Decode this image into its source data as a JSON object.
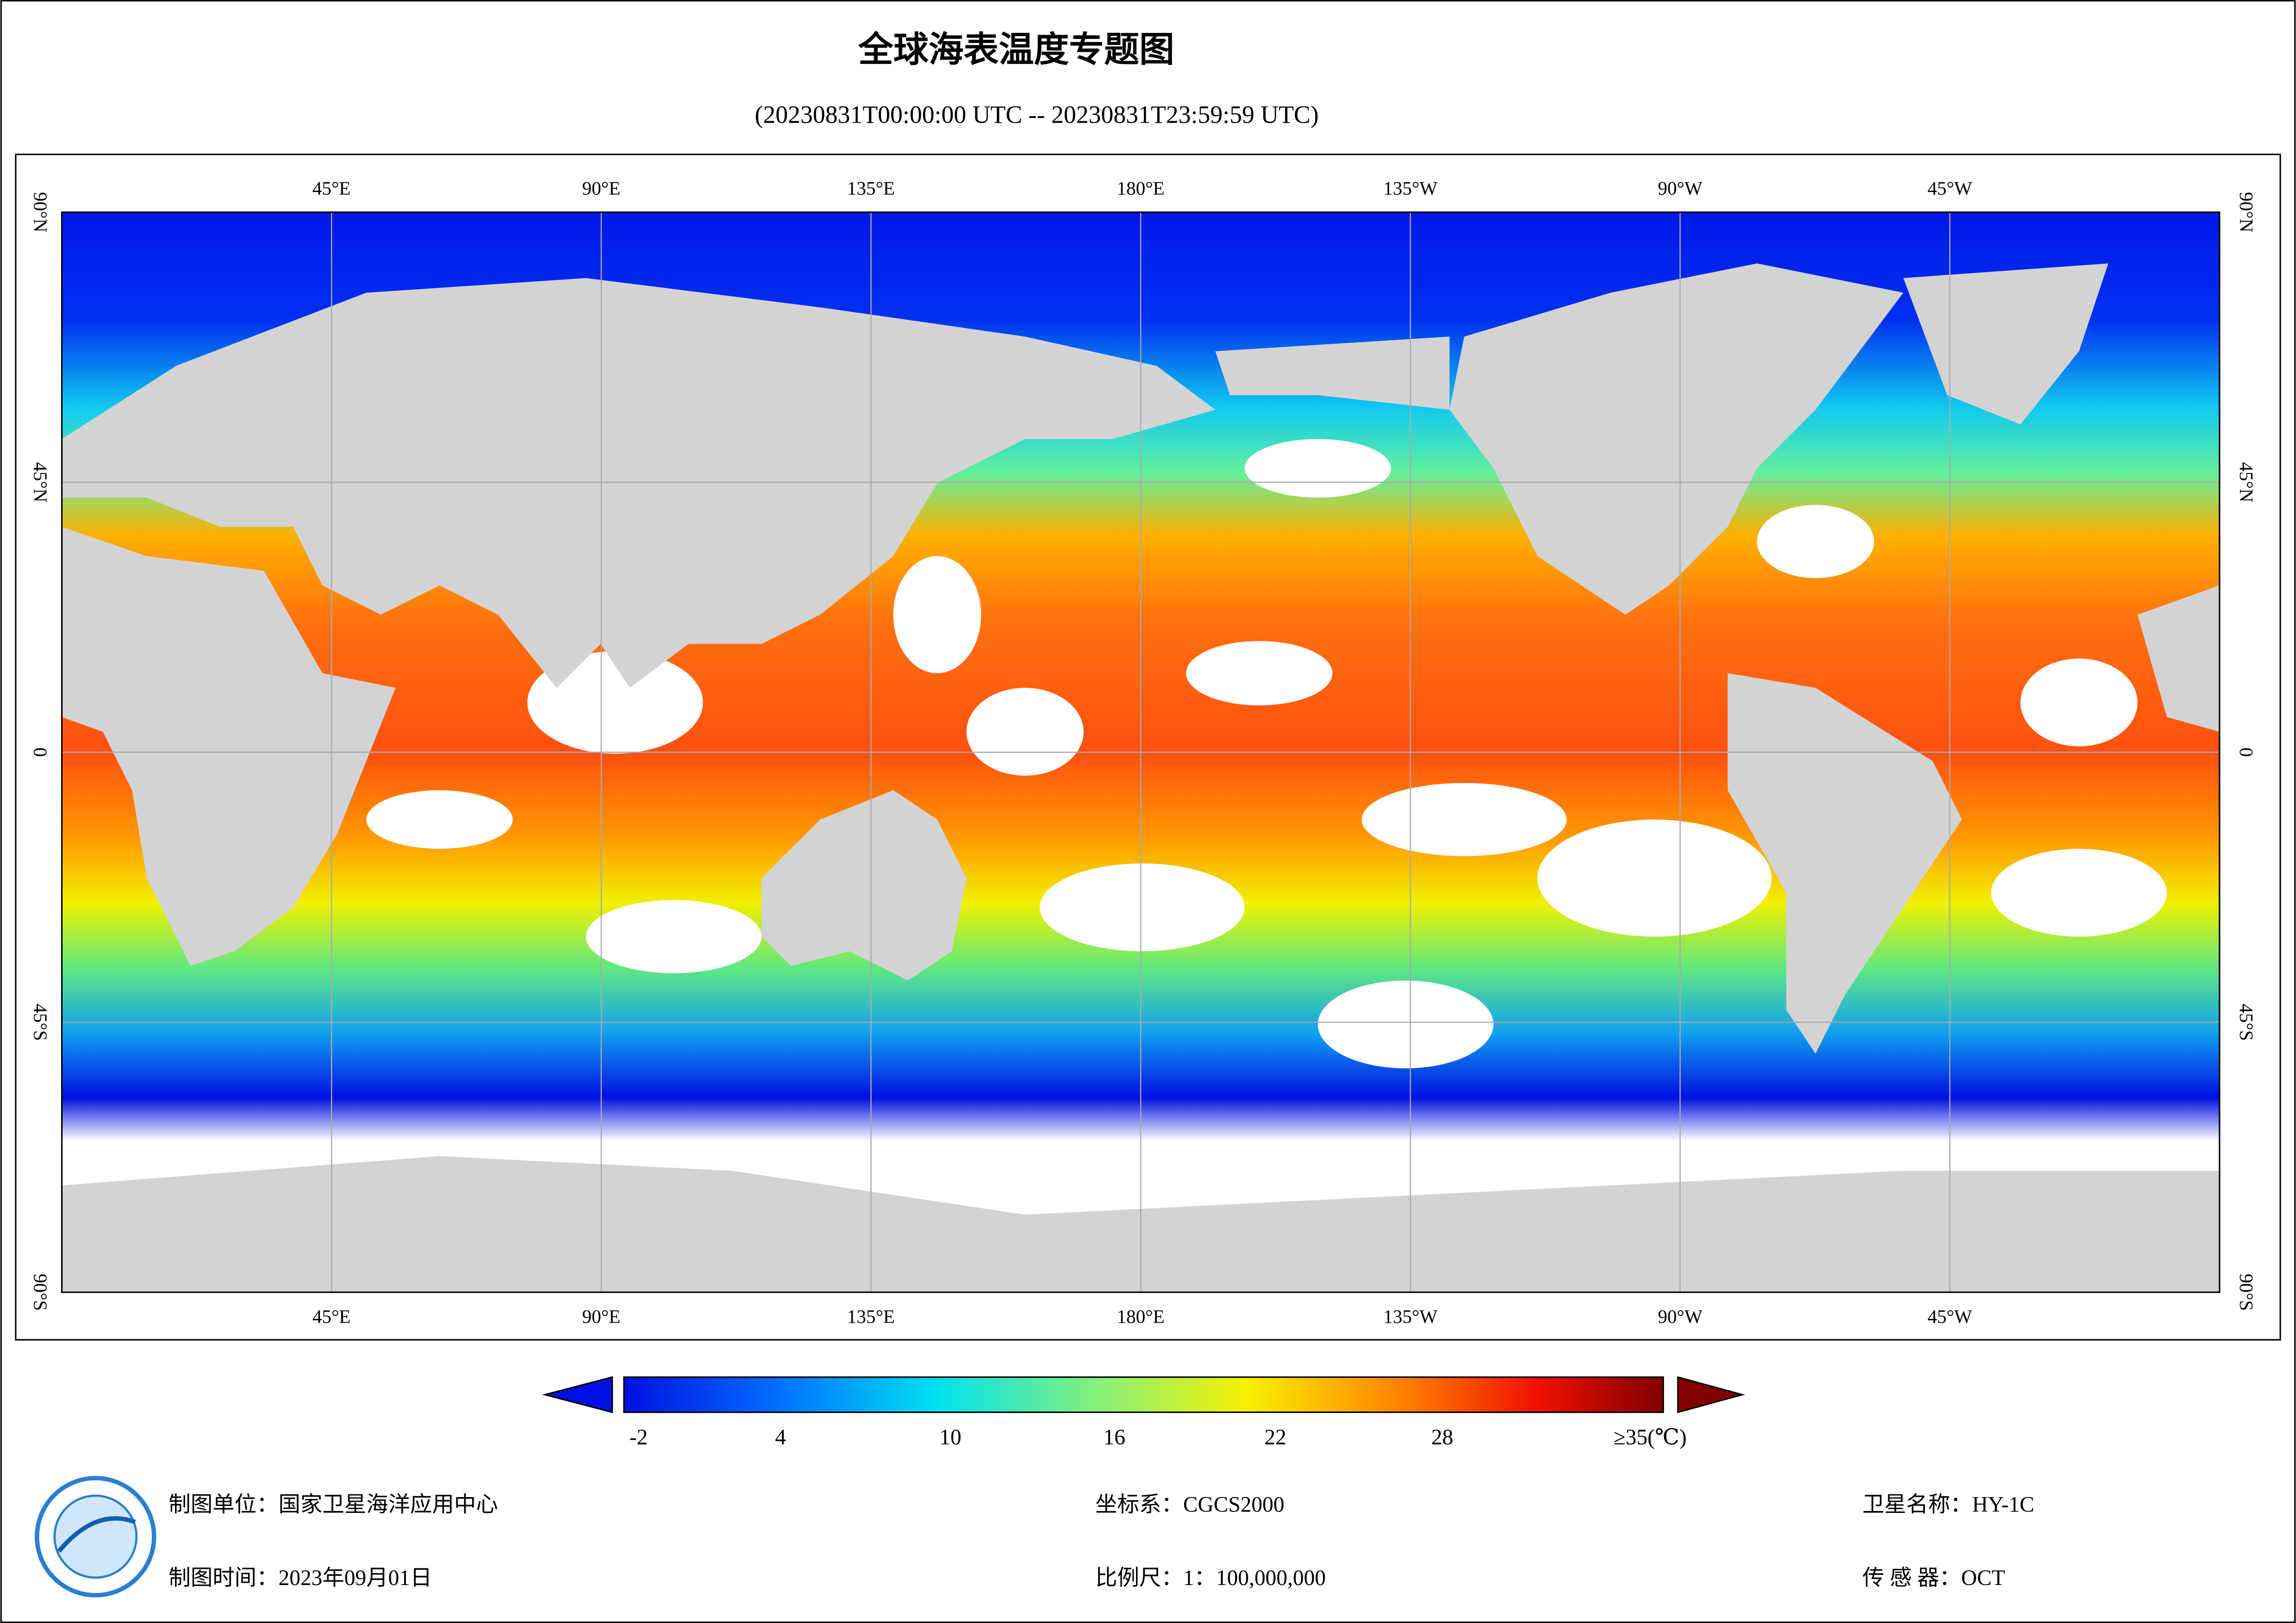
{
  "header": {
    "title": "全球海表温度专题图",
    "subtitle": "(20230831T00:00:00 UTC -- 20230831T23:59:59 UTC)"
  },
  "map": {
    "longitude_labels": [
      "45°E",
      "90°E",
      "135°E",
      "180°E",
      "135°W",
      "90°W",
      "45°W"
    ],
    "latitude_labels": [
      "90°N",
      "45°N",
      "0",
      "45°S",
      "90°S"
    ]
  },
  "colorbar": {
    "labels": [
      "-2",
      "4",
      "10",
      "16",
      "22",
      "28",
      "≥35(℃)"
    ]
  },
  "footer": {
    "unit": "制图单位：国家卫星海洋应用中心",
    "time": "制图时间：2023年09月01日",
    "crs": "坐标系：CGCS2000",
    "scale": "比例尺：1：100,000,000",
    "satellite": "卫星名称：HY-1C",
    "sensor": "传 感 器：OCT"
  }
}
